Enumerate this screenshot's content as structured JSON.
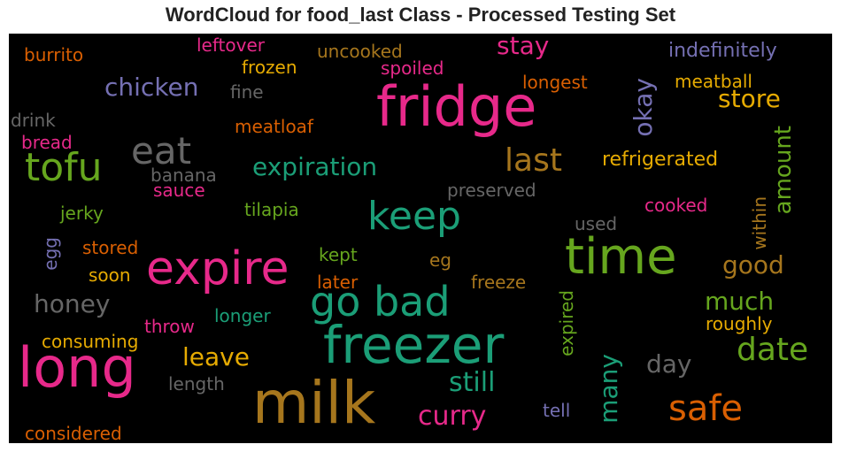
{
  "chart_data": {
    "type": "wordcloud",
    "title": "WordCloud for food_last Class - Processed Testing Set",
    "background": "#000000",
    "palette": [
      "#1b9e77",
      "#d95f02",
      "#7570b3",
      "#e7298a",
      "#66a61e",
      "#e6ab02",
      "#a6761d",
      "#666666"
    ],
    "words": [
      {
        "text": "fridge",
        "color": "#e7298a"
      },
      {
        "text": "milk",
        "color": "#a6761d"
      },
      {
        "text": "freezer",
        "color": "#1b9e77"
      },
      {
        "text": "long",
        "color": "#e7298a"
      },
      {
        "text": "time",
        "color": "#66a61e"
      },
      {
        "text": "expire",
        "color": "#e7298a"
      },
      {
        "text": "go bad",
        "color": "#1b9e77"
      },
      {
        "text": "keep",
        "color": "#1b9e77"
      },
      {
        "text": "tofu",
        "color": "#66a61e"
      },
      {
        "text": "safe",
        "color": "#d95f02"
      },
      {
        "text": "eat",
        "color": "#666666"
      },
      {
        "text": "date",
        "color": "#66a61e"
      },
      {
        "text": "last",
        "color": "#a6761d"
      },
      {
        "text": "curry",
        "color": "#e7298a"
      },
      {
        "text": "still",
        "color": "#1b9e77"
      },
      {
        "text": "expiration",
        "color": "#1b9e77"
      },
      {
        "text": "stay",
        "color": "#e7298a"
      },
      {
        "text": "good",
        "color": "#a6761d"
      },
      {
        "text": "much",
        "color": "#66a61e"
      },
      {
        "text": "honey",
        "color": "#666666"
      },
      {
        "text": "leave",
        "color": "#e6ab02"
      },
      {
        "text": "day",
        "color": "#666666"
      },
      {
        "text": "store",
        "color": "#e6ab02"
      },
      {
        "text": "chicken",
        "color": "#7570b3"
      },
      {
        "text": "many",
        "color": "#1b9e77"
      },
      {
        "text": "okay",
        "color": "#7570b3"
      },
      {
        "text": "amount",
        "color": "#66a61e"
      },
      {
        "text": "refrigerated",
        "color": "#e6ab02"
      },
      {
        "text": "indefinitely",
        "color": "#7570b3"
      },
      {
        "text": "meatball",
        "color": "#e6ab02"
      },
      {
        "text": "longest",
        "color": "#d95f02"
      },
      {
        "text": "spoiled",
        "color": "#e7298a"
      },
      {
        "text": "uncooked",
        "color": "#a6761d"
      },
      {
        "text": "leftover",
        "color": "#e7298a"
      },
      {
        "text": "frozen",
        "color": "#e6ab02"
      },
      {
        "text": "burrito",
        "color": "#d95f02"
      },
      {
        "text": "fine",
        "color": "#666666"
      },
      {
        "text": "drink",
        "color": "#666666"
      },
      {
        "text": "bread",
        "color": "#e7298a"
      },
      {
        "text": "meatloaf",
        "color": "#d95f02"
      },
      {
        "text": "banana",
        "color": "#666666"
      },
      {
        "text": "sauce",
        "color": "#e7298a"
      },
      {
        "text": "preserved",
        "color": "#666666"
      },
      {
        "text": "jerky",
        "color": "#66a61e"
      },
      {
        "text": "tilapia",
        "color": "#66a61e"
      },
      {
        "text": "cooked",
        "color": "#e7298a"
      },
      {
        "text": "used",
        "color": "#666666"
      },
      {
        "text": "within",
        "color": "#a6761d"
      },
      {
        "text": "egg",
        "color": "#7570b3"
      },
      {
        "text": "stored",
        "color": "#d95f02"
      },
      {
        "text": "kept",
        "color": "#66a61e"
      },
      {
        "text": "eg",
        "color": "#a6761d"
      },
      {
        "text": "soon",
        "color": "#e6ab02"
      },
      {
        "text": "later",
        "color": "#d95f02"
      },
      {
        "text": "freeze",
        "color": "#a6761d"
      },
      {
        "text": "expired",
        "color": "#66a61e"
      },
      {
        "text": "roughly",
        "color": "#e6ab02"
      },
      {
        "text": "longer",
        "color": "#1b9e77"
      },
      {
        "text": "throw",
        "color": "#e7298a"
      },
      {
        "text": "consuming",
        "color": "#e6ab02"
      },
      {
        "text": "length",
        "color": "#666666"
      },
      {
        "text": "tell",
        "color": "#7570b3"
      },
      {
        "text": "considered",
        "color": "#d95f02"
      }
    ]
  }
}
